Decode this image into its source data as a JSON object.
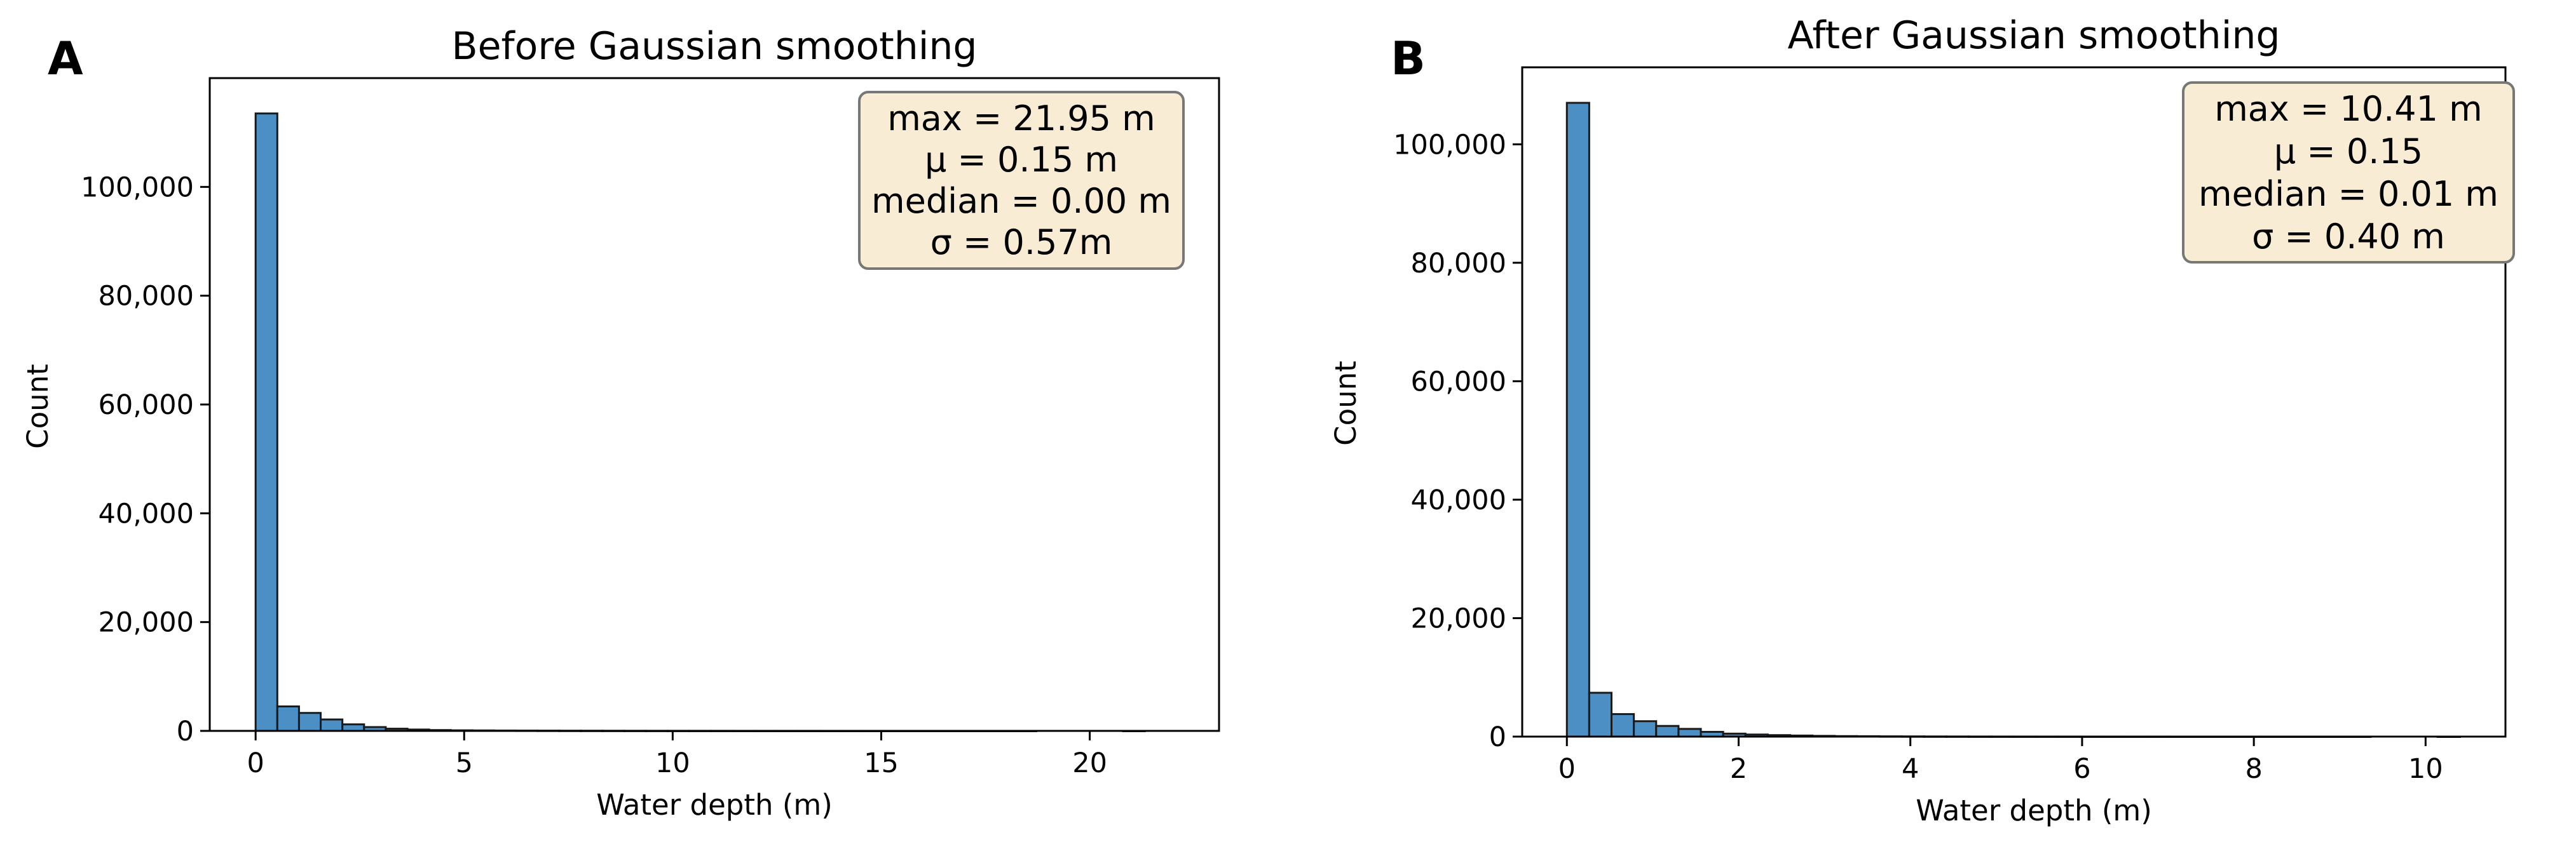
{
  "chart_data": [
    {
      "type": "bar",
      "panel_label": "A",
      "title": "Before Gaussian smoothing",
      "xlabel": "Water depth (m)",
      "ylabel": "Count",
      "xlim": [
        -1.1,
        23.1
      ],
      "ylim": [
        0,
        120000
      ],
      "xticks": [
        0,
        5,
        10,
        15,
        20
      ],
      "xtick_labels": [
        "0",
        "5",
        "10",
        "15",
        "20"
      ],
      "yticks": [
        0,
        20000,
        40000,
        60000,
        80000,
        100000
      ],
      "ytick_labels": [
        "0",
        "20,000",
        "40,000",
        "60,000",
        "80,000",
        "100,000"
      ],
      "bin_start": 0,
      "bin_width": 0.52,
      "values": [
        113500,
        4500,
        3300,
        2100,
        1200,
        700,
        400,
        250,
        150,
        100,
        80,
        60,
        50,
        40,
        30,
        25,
        20,
        15,
        12,
        10,
        8,
        6,
        5,
        4,
        3,
        3,
        2,
        2,
        2,
        1,
        1,
        1,
        1,
        1,
        1,
        1,
        0,
        0,
        0,
        0,
        1,
        0
      ],
      "stats": [
        "max = 21.95 m",
        "μ = 0.15 m",
        "median = 0.00 m",
        "σ = 0.57m"
      ],
      "legend_position": "top-right",
      "grid": false
    },
    {
      "type": "bar",
      "panel_label": "B",
      "title": "After Gaussian smoothing",
      "xlabel": "Water depth (m)",
      "ylabel": "Count",
      "xlim": [
        -0.52,
        10.93
      ],
      "ylim": [
        0,
        113000
      ],
      "xticks": [
        0,
        2,
        4,
        6,
        8,
        10
      ],
      "xtick_labels": [
        "0",
        "2",
        "4",
        "6",
        "8",
        "10"
      ],
      "yticks": [
        0,
        20000,
        40000,
        60000,
        80000,
        100000
      ],
      "ytick_labels": [
        "0",
        "20,000",
        "40,000",
        "60,000",
        "80,000",
        "100,000"
      ],
      "bin_start": 0,
      "bin_width": 0.26,
      "values": [
        107000,
        7400,
        3800,
        2600,
        1800,
        1300,
        800,
        500,
        350,
        250,
        180,
        120,
        80,
        60,
        40,
        30,
        20,
        15,
        10,
        8,
        6,
        5,
        4,
        3,
        2,
        2,
        2,
        1,
        1,
        1,
        1,
        1,
        1,
        1,
        1,
        1,
        0,
        0,
        0,
        1
      ],
      "stats": [
        "max = 10.41 m",
        "μ = 0.15",
        "median = 0.01 m",
        "σ = 0.40 m"
      ],
      "legend_position": "top-right",
      "grid": false
    }
  ]
}
